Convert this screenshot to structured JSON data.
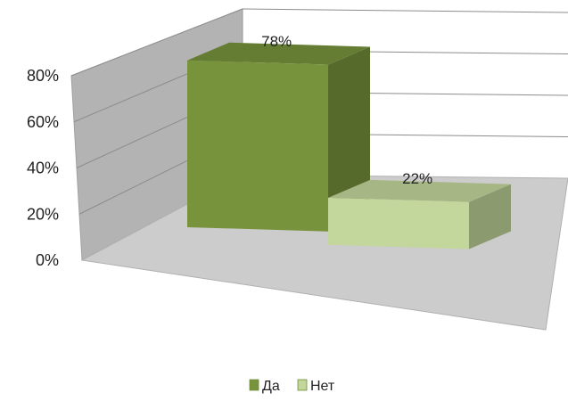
{
  "chart_data": {
    "type": "bar",
    "style": "3d-clustered",
    "categories": [
      "Да",
      "Нет"
    ],
    "values": [
      78,
      22
    ],
    "value_format": "percent",
    "data_labels": [
      "78%",
      "22%"
    ],
    "y_ticks": [
      "0%",
      "20%",
      "40%",
      "60%",
      "80%"
    ],
    "ylim": [
      0,
      80
    ],
    "grid": true,
    "legend": "bottom",
    "legend_entries": [
      "Да",
      "Нет"
    ],
    "colors": {
      "Да": "#77933c",
      "Нет": "#c3d69b",
      "wall": "#b3b3b3",
      "floor": "#cccccc",
      "gridline": "#8c8c8c"
    }
  }
}
